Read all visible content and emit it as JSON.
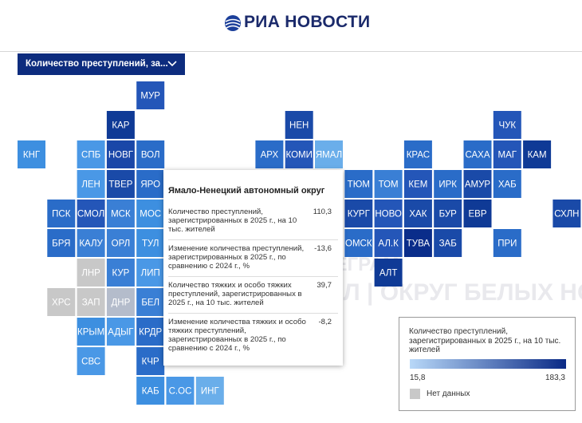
{
  "header": {
    "logo": "РИА НОВОСТИ"
  },
  "dropdown": {
    "label": "Количество преступлений, за..."
  },
  "tiles": [
    {
      "label": "МУР",
      "color": "#2456b8"
    },
    {
      "label": "КАР",
      "color": "#0f3a96"
    },
    {
      "label": "НЕН",
      "color": "#1a4aa8"
    },
    {
      "label": "ЧУК",
      "color": "#2456b8"
    },
    {
      "label": "КНГ",
      "color": "#3d8fe0"
    },
    {
      "label": "СПБ",
      "color": "#4a98e6"
    },
    {
      "label": "НОВГ",
      "color": "#1a47a8"
    },
    {
      "label": "ВОЛ",
      "color": "#2a6cc8"
    },
    {
      "label": "АРХ",
      "color": "#2a6cc8"
    },
    {
      "label": "КОМИ",
      "color": "#2456b8"
    },
    {
      "label": "ЯМАЛ",
      "color": "#6aaeea"
    },
    {
      "label": "КРАС",
      "color": "#2a6cc8"
    },
    {
      "label": "САХА",
      "color": "#2a6cc8"
    },
    {
      "label": "МАГ",
      "color": "#2456b8"
    },
    {
      "label": "КАМ",
      "color": "#0f3a96"
    },
    {
      "label": "ЛЕН",
      "color": "#4a98e6"
    },
    {
      "label": "ТВЕР",
      "color": "#1a4aa8"
    },
    {
      "label": "ЯРО",
      "color": "#2a6cc8"
    },
    {
      "label": "ТЮМ",
      "color": "#2a6cc8"
    },
    {
      "label": "ТОМ",
      "color": "#3a7fd5"
    },
    {
      "label": "КЕМ",
      "color": "#2456b8"
    },
    {
      "label": "ИРК",
      "color": "#2a6cc8"
    },
    {
      "label": "АМУР",
      "color": "#1a4aa8"
    },
    {
      "label": "ХАБ",
      "color": "#2a6cc8"
    },
    {
      "label": "ПСК",
      "color": "#2a6cc8"
    },
    {
      "label": "СМОЛ",
      "color": "#2456b8"
    },
    {
      "label": "МСК",
      "color": "#3a7fd5"
    },
    {
      "label": "МОС",
      "color": "#3d8fe0"
    },
    {
      "label": "КУРГ",
      "color": "#1a4aa8"
    },
    {
      "label": "НОВО",
      "color": "#2456b8"
    },
    {
      "label": "ХАК",
      "color": "#1a4aa8"
    },
    {
      "label": "БУР",
      "color": "#1a4aa8"
    },
    {
      "label": "ЕВР",
      "color": "#0f3a96"
    },
    {
      "label": "СХЛН",
      "color": "#1a4aa8"
    },
    {
      "label": "БРЯ",
      "color": "#2a6cc8"
    },
    {
      "label": "КАЛУ",
      "color": "#3a7fd5"
    },
    {
      "label": "ОРЛ",
      "color": "#3a7fd5"
    },
    {
      "label": "ТУЛ",
      "color": "#3d8fe0"
    },
    {
      "label": "ОМСК",
      "color": "#2a6cc8"
    },
    {
      "label": "АЛ.К",
      "color": "#2456b8"
    },
    {
      "label": "ТУВА",
      "color": "#0a2d8a"
    },
    {
      "label": "ЗАБ",
      "color": "#1a4aa8"
    },
    {
      "label": "ПРИ",
      "color": "#2a6cc8"
    },
    {
      "label": "ЛНР",
      "color": "#c8c8c8"
    },
    {
      "label": "КУР",
      "color": "#3a7fd5"
    },
    {
      "label": "ЛИП",
      "color": "#4a98e6"
    },
    {
      "label": "АЛТ",
      "color": "#0f3a96"
    },
    {
      "label": "ХРС",
      "color": "#c8c8c8"
    },
    {
      "label": "ЗАП",
      "color": "#c8c8c8"
    },
    {
      "label": "ДНР",
      "color": "#b4bccb"
    },
    {
      "label": "БЕЛ",
      "color": "#3a7fd5"
    },
    {
      "label": "КРЫМ",
      "color": "#3d8fe0"
    },
    {
      "label": "АДЫГ",
      "color": "#4a98e6"
    },
    {
      "label": "КРДР",
      "color": "#2a6cc8"
    },
    {
      "label": "СВС",
      "color": "#4a98e6"
    },
    {
      "label": "КЧР",
      "color": "#2a6cc8"
    },
    {
      "label": "КАБ",
      "color": "#3d8fe0"
    },
    {
      "label": "С.ОС",
      "color": "#4a98e6"
    },
    {
      "label": "ИНГ",
      "color": "#6aaeea"
    }
  ],
  "tooltip": {
    "title": "Ямало-Ненецкий автономный округ",
    "rows": [
      {
        "label": "Количество преступлений, зарегистрированных в 2025 г., на 10 тыс. жителей",
        "value": "110,3"
      },
      {
        "label": "Изменение количества преступлений, зарегистрированных в 2025 г., по сравнению с 2024 г., %",
        "value": "-13,6"
      },
      {
        "label": "Количество тяжких и особо тяжких преступлений, зарегистрированных в 2025 г., на 10 тыс. жителей",
        "value": "39,7"
      },
      {
        "label": "Изменение количества тяжких и особо тяжких преступлений, зарегистрированных в 2025 г., по сравнению с 2024 г., %",
        "value": "-8,2"
      }
    ]
  },
  "legend": {
    "title": "Количество преступлений, зарегистрированных в 2025 г., на 10 тыс. жителей",
    "min": "15,8",
    "max": "183,3",
    "no_data": "Нет данных"
  },
  "watermark": {
    "line1": "ТЕЛЕГРАМ",
    "line2": "ЯМАЛ | ОКРУГ БЕЛЫХ НОЧЕЙ"
  }
}
